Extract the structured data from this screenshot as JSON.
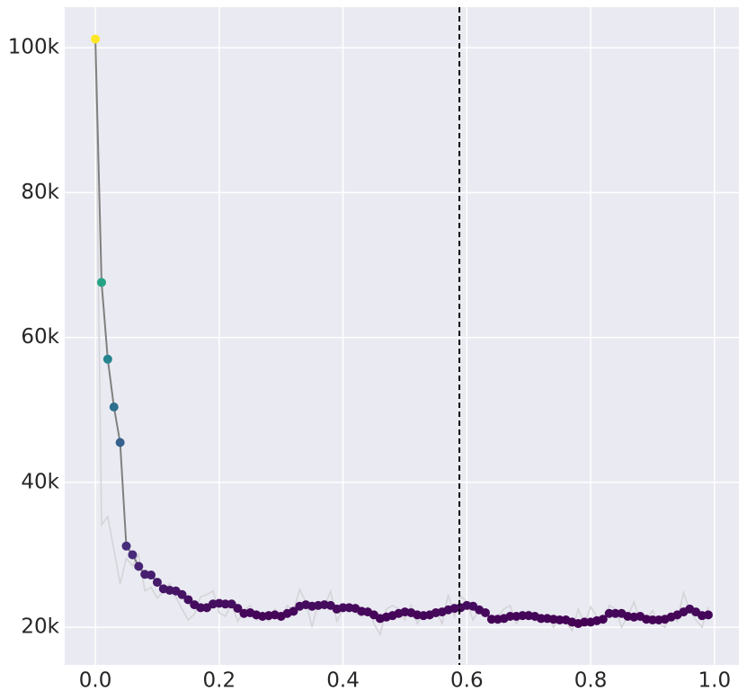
{
  "chart_data": {
    "type": "line",
    "x": [
      0,
      0.01,
      0.02,
      0.03,
      0.04,
      0.05,
      0.06,
      0.07,
      0.08,
      0.09,
      0.1,
      0.11,
      0.12,
      0.13,
      0.14,
      0.15,
      0.16,
      0.17,
      0.18,
      0.19,
      0.2,
      0.21,
      0.22,
      0.23,
      0.24,
      0.25,
      0.26,
      0.27,
      0.28,
      0.29,
      0.3,
      0.31,
      0.32,
      0.33,
      0.34,
      0.35,
      0.36,
      0.37,
      0.38,
      0.39,
      0.4,
      0.41,
      0.42,
      0.43,
      0.44,
      0.45,
      0.46,
      0.47,
      0.48,
      0.49,
      0.5,
      0.51,
      0.52,
      0.53,
      0.54,
      0.55,
      0.56,
      0.57,
      0.58,
      0.59,
      0.6,
      0.61,
      0.62,
      0.63,
      0.64,
      0.65,
      0.66,
      0.67,
      0.68,
      0.69,
      0.7,
      0.71,
      0.72,
      0.73,
      0.74,
      0.75,
      0.76,
      0.77,
      0.78,
      0.79,
      0.8,
      0.81,
      0.82,
      0.83,
      0.84,
      0.85,
      0.86,
      0.87,
      0.88,
      0.89,
      0.9,
      0.91,
      0.92,
      0.93,
      0.94,
      0.95,
      0.96,
      0.97,
      0.98,
      0.99
    ],
    "series": [
      {
        "color": "#d4d4d8",
        "values": [
          101200,
          34100,
          35300,
          30700,
          26000,
          29500,
          28500,
          30000,
          25000,
          25500,
          24000,
          25000,
          26000,
          24200,
          22500,
          21000,
          21800,
          24200,
          24500,
          25000,
          22000,
          21500,
          23200,
          20800,
          22300,
          23000,
          21000,
          21800,
          20800,
          22500,
          21000,
          23000,
          22300,
          25200,
          23500,
          20000,
          23500,
          22800,
          25000,
          20800,
          22500,
          23000,
          22000,
          21500,
          22800,
          20500,
          19000,
          22500,
          23000,
          22500,
          21000,
          23000,
          20500,
          22000,
          21200,
          22300,
          20500,
          24500,
          21500,
          24300,
          23500,
          21000,
          22500,
          22000,
          20800,
          21500,
          22500,
          23000,
          20500,
          21800,
          22300,
          20800,
          21500,
          21800,
          20000,
          21500,
          20800,
          19500,
          22500,
          20500,
          22800,
          21500,
          20800,
          23000,
          22500,
          20000,
          21500,
          23500,
          20800,
          21000,
          22300,
          20500,
          20000,
          22000,
          20800,
          24800,
          22300,
          21000,
          20000,
          22800
        ]
      },
      {
        "color": "#808080",
        "colormap": "viridis",
        "values": [
          101200,
          67600,
          57000,
          50400,
          45500,
          31200,
          30000,
          28400,
          27300,
          27200,
          26200,
          25300,
          25100,
          25000,
          24500,
          23800,
          23100,
          22700,
          22700,
          23200,
          23300,
          23200,
          23200,
          22600,
          21900,
          22000,
          21700,
          21500,
          21600,
          21700,
          21500,
          21900,
          22200,
          22900,
          23100,
          22900,
          23000,
          23100,
          23000,
          22500,
          22700,
          22700,
          22600,
          22200,
          22100,
          21700,
          21200,
          21400,
          21600,
          21900,
          22100,
          22000,
          21700,
          21600,
          21700,
          22000,
          22100,
          22400,
          22600,
          22700,
          23000,
          22900,
          22400,
          22000,
          21100,
          21100,
          21200,
          21500,
          21500,
          21600,
          21600,
          21500,
          21200,
          21200,
          21100,
          21000,
          21000,
          20700,
          20500,
          20700,
          20700,
          20900,
          21100,
          21900,
          21900,
          21900,
          21500,
          21400,
          21500,
          21100,
          21000,
          21000,
          21100,
          21400,
          21700,
          22100,
          22500,
          22100,
          21600,
          21700
        ]
      }
    ],
    "vline": 0.588,
    "xlim": [
      -0.0495,
      1.0395
    ],
    "xticks": [
      {
        "value": 0,
        "label": "0.0"
      },
      0.2,
      0.4,
      0.6,
      0.8,
      {
        "value": 1,
        "label": "1.0"
      }
    ],
    "ylim": [
      14800,
      105600
    ],
    "yticks": [
      {
        "value": 20000,
        "label": "20k"
      },
      {
        "value": 40000,
        "label": "40k"
      },
      {
        "value": 60000,
        "label": "60k"
      },
      {
        "value": 80000,
        "label": "80k"
      },
      {
        "value": 100000,
        "label": "100k"
      }
    ],
    "grid": true
  }
}
